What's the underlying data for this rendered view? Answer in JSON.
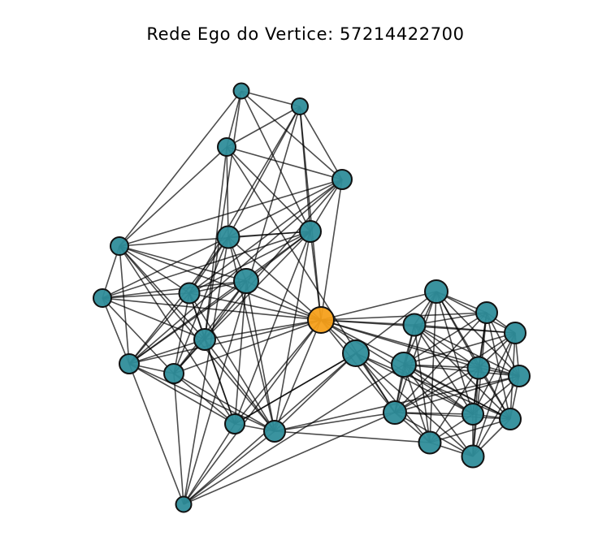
{
  "figure": {
    "title": "Rede Ego do Vertice: 57214422700"
  },
  "colors": {
    "ego": "#F5A01B",
    "alter": "#2F8D9A",
    "edge": "#000000"
  },
  "graph": {
    "ego_id": "ego",
    "nodes": [
      {
        "id": "ego",
        "role": "ego"
      },
      {
        "id": "n1",
        "role": "alter"
      },
      {
        "id": "n2",
        "role": "alter"
      },
      {
        "id": "n3",
        "role": "alter"
      },
      {
        "id": "n4",
        "role": "alter"
      },
      {
        "id": "n5",
        "role": "alter"
      },
      {
        "id": "n6",
        "role": "alter"
      },
      {
        "id": "n7",
        "role": "alter"
      },
      {
        "id": "n8",
        "role": "alter"
      },
      {
        "id": "n9",
        "role": "alter"
      },
      {
        "id": "n10",
        "role": "alter"
      },
      {
        "id": "n11",
        "role": "alter"
      },
      {
        "id": "n12",
        "role": "alter"
      },
      {
        "id": "n13",
        "role": "alter"
      },
      {
        "id": "n14",
        "role": "alter"
      },
      {
        "id": "n15",
        "role": "alter"
      },
      {
        "id": "n16",
        "role": "alter"
      },
      {
        "id": "n17",
        "role": "alter"
      },
      {
        "id": "n18",
        "role": "alter"
      },
      {
        "id": "n19",
        "role": "alter"
      },
      {
        "id": "n20",
        "role": "alter"
      },
      {
        "id": "n21",
        "role": "alter"
      },
      {
        "id": "n22",
        "role": "alter"
      },
      {
        "id": "n23",
        "role": "alter"
      },
      {
        "id": "n24",
        "role": "alter"
      },
      {
        "id": "n25",
        "role": "alter"
      },
      {
        "id": "n26",
        "role": "alter"
      },
      {
        "id": "n27",
        "role": "alter"
      }
    ],
    "edges": [
      [
        "n1",
        "n3"
      ],
      [
        "n1",
        "n5"
      ],
      [
        "n1",
        "n7"
      ],
      [
        "n1",
        "n11"
      ],
      [
        "n1",
        "n4"
      ],
      [
        "n1",
        "n2"
      ],
      [
        "n2",
        "n3"
      ],
      [
        "n2",
        "n4"
      ],
      [
        "n2",
        "n6"
      ],
      [
        "n2",
        "n7"
      ],
      [
        "n2",
        "n9"
      ],
      [
        "n3",
        "n4"
      ],
      [
        "n3",
        "n5"
      ],
      [
        "n3",
        "n6"
      ],
      [
        "n3",
        "n7"
      ],
      [
        "n3",
        "n11"
      ],
      [
        "n4",
        "n5"
      ],
      [
        "n4",
        "n6"
      ],
      [
        "n4",
        "n7"
      ],
      [
        "n4",
        "n9"
      ],
      [
        "n4",
        "ego"
      ],
      [
        "n4",
        "n13"
      ],
      [
        "n4",
        "n12"
      ],
      [
        "n5",
        "n8"
      ],
      [
        "n5",
        "n9"
      ],
      [
        "n5",
        "n10"
      ],
      [
        "n5",
        "n11"
      ],
      [
        "n5",
        "n14"
      ],
      [
        "n5",
        "n7"
      ],
      [
        "n5",
        "ego"
      ],
      [
        "n5",
        "n12"
      ],
      [
        "n5",
        "n15"
      ],
      [
        "n6",
        "n7"
      ],
      [
        "n6",
        "n8"
      ],
      [
        "n6",
        "n9"
      ],
      [
        "n6",
        "n10"
      ],
      [
        "n6",
        "ego"
      ],
      [
        "n6",
        "n12"
      ],
      [
        "n6",
        "n13"
      ],
      [
        "n6",
        "n16"
      ],
      [
        "n6",
        "n15"
      ],
      [
        "n7",
        "n8"
      ],
      [
        "n7",
        "n9"
      ],
      [
        "n7",
        "n10"
      ],
      [
        "n7",
        "n11"
      ],
      [
        "n7",
        "n12"
      ],
      [
        "n7",
        "ego"
      ],
      [
        "n7",
        "n14"
      ],
      [
        "n7",
        "n15"
      ],
      [
        "n8",
        "n9"
      ],
      [
        "n8",
        "n10"
      ],
      [
        "n8",
        "n11"
      ],
      [
        "n8",
        "n12"
      ],
      [
        "n8",
        "n13"
      ],
      [
        "n8",
        "ego"
      ],
      [
        "n9",
        "n10"
      ],
      [
        "n9",
        "n11"
      ],
      [
        "n9",
        "n12"
      ],
      [
        "n9",
        "n13"
      ],
      [
        "n9",
        "n14"
      ],
      [
        "n9",
        "n15"
      ],
      [
        "n9",
        "ego"
      ],
      [
        "n10",
        "n11"
      ],
      [
        "n10",
        "n12"
      ],
      [
        "n10",
        "n13"
      ],
      [
        "n10",
        "n14"
      ],
      [
        "n10",
        "n15"
      ],
      [
        "n10",
        "ego"
      ],
      [
        "n11",
        "n12"
      ],
      [
        "n11",
        "n13"
      ],
      [
        "n11",
        "n14"
      ],
      [
        "n11",
        "n15"
      ],
      [
        "n12",
        "n13"
      ],
      [
        "n12",
        "n14"
      ],
      [
        "n12",
        "n15"
      ],
      [
        "n12",
        "ego"
      ],
      [
        "n12",
        "n16"
      ],
      [
        "n13",
        "n14"
      ],
      [
        "n13",
        "n15"
      ],
      [
        "n13",
        "ego"
      ],
      [
        "n13",
        "n16"
      ],
      [
        "n14",
        "n15"
      ],
      [
        "n14",
        "n16"
      ],
      [
        "n14",
        "n17"
      ],
      [
        "n14",
        "ego"
      ],
      [
        "n15",
        "n16"
      ],
      [
        "n15",
        "n17"
      ],
      [
        "n15",
        "ego"
      ],
      [
        "n15",
        "n25"
      ],
      [
        "n16",
        "n17"
      ],
      [
        "n16",
        "ego"
      ],
      [
        "n16",
        "n25"
      ],
      [
        "n17",
        "n18"
      ],
      [
        "n17",
        "ego"
      ],
      [
        "n17",
        "n25"
      ],
      [
        "n17",
        "n26"
      ],
      [
        "n18",
        "n19"
      ],
      [
        "n18",
        "n20"
      ],
      [
        "n18",
        "n21"
      ],
      [
        "n18",
        "n22"
      ],
      [
        "n18",
        "n23"
      ],
      [
        "n18",
        "n24"
      ],
      [
        "n18",
        "n25"
      ],
      [
        "n18",
        "n26"
      ],
      [
        "n18",
        "n27"
      ],
      [
        "n18",
        "ego"
      ],
      [
        "n19",
        "n20"
      ],
      [
        "n19",
        "n21"
      ],
      [
        "n19",
        "n22"
      ],
      [
        "n19",
        "n23"
      ],
      [
        "n19",
        "n24"
      ],
      [
        "n19",
        "n25"
      ],
      [
        "n19",
        "n26"
      ],
      [
        "n19",
        "n27"
      ],
      [
        "n19",
        "ego"
      ],
      [
        "n20",
        "n21"
      ],
      [
        "n20",
        "n22"
      ],
      [
        "n20",
        "n23"
      ],
      [
        "n20",
        "n24"
      ],
      [
        "n20",
        "n25"
      ],
      [
        "n20",
        "n26"
      ],
      [
        "n20",
        "n27"
      ],
      [
        "n20",
        "ego"
      ],
      [
        "n21",
        "n22"
      ],
      [
        "n21",
        "n23"
      ],
      [
        "n21",
        "n24"
      ],
      [
        "n21",
        "n25"
      ],
      [
        "n21",
        "n26"
      ],
      [
        "n21",
        "n27"
      ],
      [
        "n21",
        "ego"
      ],
      [
        "n22",
        "n23"
      ],
      [
        "n22",
        "n24"
      ],
      [
        "n22",
        "n25"
      ],
      [
        "n22",
        "n26"
      ],
      [
        "n22",
        "n27"
      ],
      [
        "n23",
        "n24"
      ],
      [
        "n23",
        "n25"
      ],
      [
        "n23",
        "n26"
      ],
      [
        "n23",
        "n27"
      ],
      [
        "n23",
        "ego"
      ],
      [
        "n24",
        "n25"
      ],
      [
        "n24",
        "n26"
      ],
      [
        "n24",
        "n27"
      ],
      [
        "n24",
        "ego"
      ],
      [
        "n25",
        "n26"
      ],
      [
        "n25",
        "n27"
      ],
      [
        "n25",
        "ego"
      ],
      [
        "n26",
        "n27"
      ],
      [
        "n26",
        "ego"
      ],
      [
        "n27",
        "ego"
      ],
      [
        "n3",
        "n25"
      ],
      [
        "n2",
        "n16"
      ],
      [
        "n2",
        "ego"
      ],
      [
        "n16",
        "n22"
      ],
      [
        "n15",
        "n24"
      ],
      [
        "n17",
        "n27"
      ],
      [
        "n11",
        "ego"
      ],
      [
        "n17",
        "n14"
      ]
    ]
  }
}
